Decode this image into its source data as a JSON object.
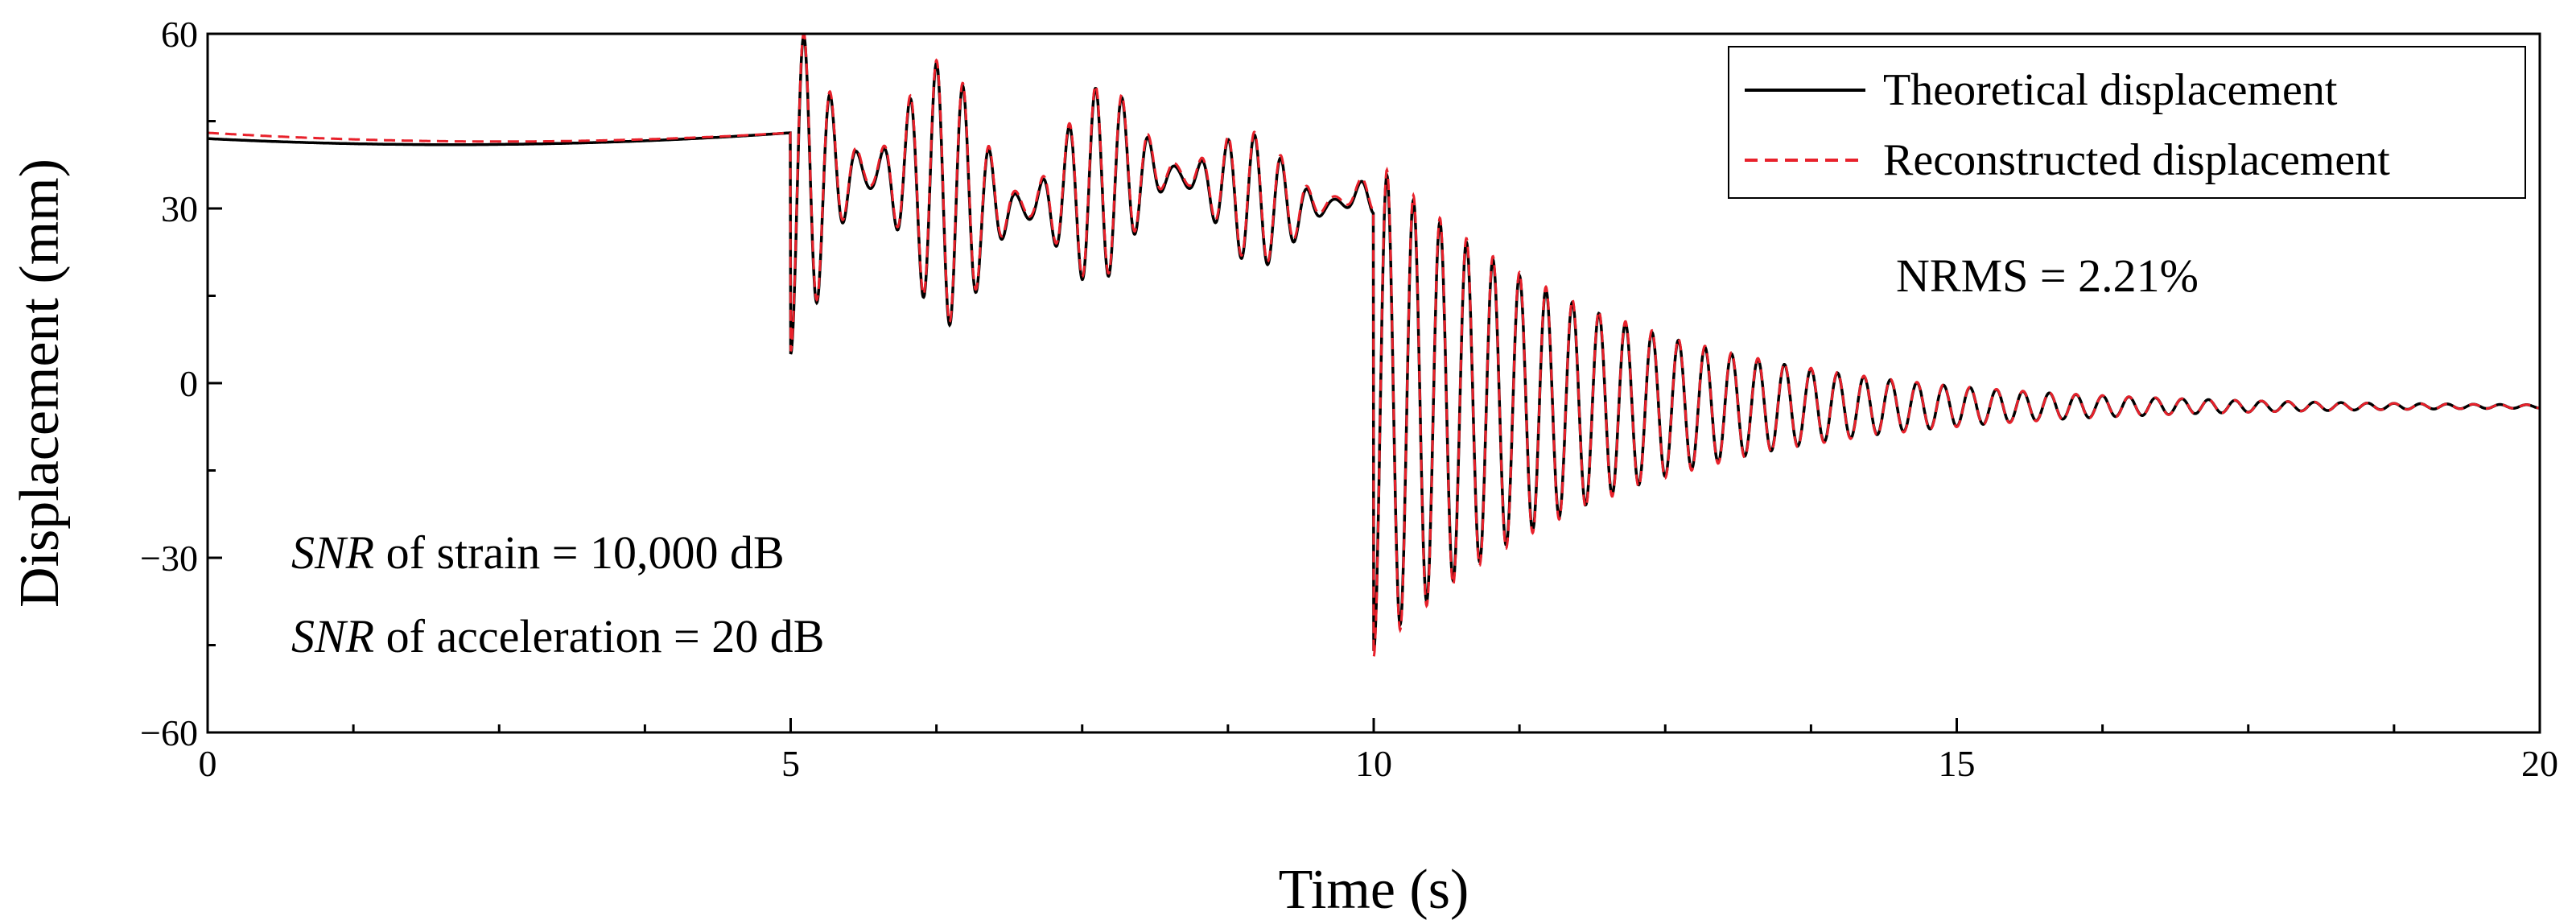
{
  "chart_data": {
    "type": "line",
    "title": "",
    "xlabel": "Time (s)",
    "ylabel": "Displacement (mm)",
    "xlim": [
      0,
      20
    ],
    "ylim": [
      -60,
      60
    ],
    "x_ticks": [
      0,
      5,
      10,
      15,
      20
    ],
    "y_ticks": [
      -60,
      -30,
      0,
      30,
      60
    ],
    "x_tick_labels": [
      "0",
      "5",
      "10",
      "15",
      "20"
    ],
    "y_tick_labels": [
      "−60",
      "−30",
      "0",
      "30",
      "60"
    ],
    "grid": false,
    "legend_position": "top-right",
    "series": [
      {
        "name": "Theoretical displacement",
        "style": "solid",
        "color": "#000000",
        "segments": [
          {
            "t_start": 0,
            "t_end": 5,
            "kind": "slow-drift",
            "start": 42,
            "mid": 41,
            "end": 43
          },
          {
            "t_start": 5,
            "t_end": 10,
            "kind": "beating",
            "mean": 33,
            "amp_start": 28,
            "amp_end": 7,
            "freq_hz": 4.4,
            "beat_freq_hz": 0.75
          },
          {
            "t_start": 10,
            "t_end": 20,
            "kind": "decaying",
            "start_value": -47,
            "final_value": -4,
            "amp_start": 42,
            "decay_rate": 0.5,
            "freq_hz": 4.4
          }
        ]
      },
      {
        "name": "Reconstructed displacement",
        "style": "dashed",
        "color": "#e8212b",
        "segments": [
          {
            "t_start": 0,
            "t_end": 5,
            "kind": "slow-drift",
            "start": 43,
            "mid": 41.5,
            "end": 43
          },
          {
            "t_start": 5,
            "t_end": 10,
            "kind": "beating",
            "mean": 33.5,
            "amp_start": 28,
            "amp_end": 7,
            "freq_hz": 4.4,
            "beat_freq_hz": 0.75
          },
          {
            "t_start": 10,
            "t_end": 20,
            "kind": "decaying",
            "start_value": -48,
            "final_value": -4,
            "amp_start": 43,
            "decay_rate": 0.5,
            "freq_hz": 4.4
          }
        ]
      }
    ],
    "annotations": {
      "nrms": "NRMS = 2.21%",
      "snr_strain_label": "SNR",
      "snr_strain_rest": " of strain = 10,000 dB",
      "snr_accel_label": "SNR",
      "snr_accel_rest": " of acceleration = 20 dB"
    }
  },
  "colors": {
    "axis": "#000000",
    "theoretical": "#000000",
    "reconstructed": "#e8212b",
    "background": "#ffffff"
  }
}
